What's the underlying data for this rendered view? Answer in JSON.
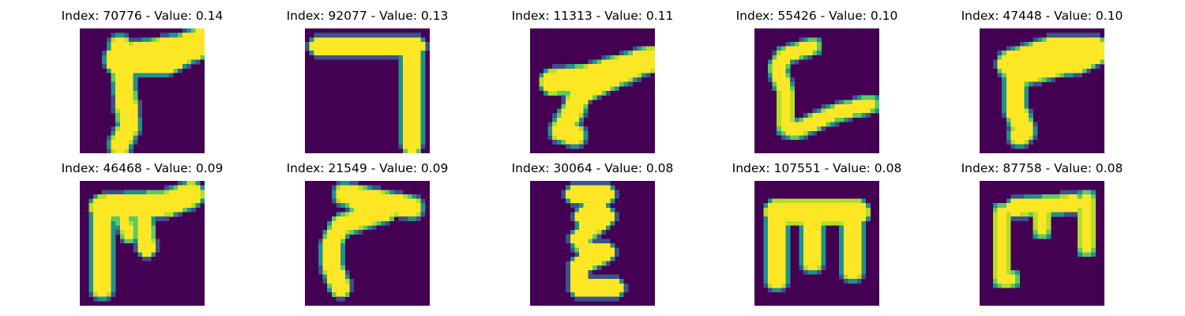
{
  "colors": {
    "background": "#440154",
    "mid": "#21918c",
    "high": "#fde725",
    "accent": "#b5de2b"
  },
  "panels": [
    {
      "title": "Index: 70776 - Value: 0.14",
      "strokes": [
        {
          "points": [
            [
              9,
              4
            ],
            [
              11,
              22
            ],
            [
              9,
              26
            ]
          ],
          "w": 2.6
        },
        {
          "points": [
            [
              9,
              7
            ],
            [
              22,
              5
            ],
            [
              28,
              3
            ]
          ],
          "w": 3.6
        },
        {
          "points": [
            [
              10,
              8
            ],
            [
              20,
              8
            ],
            [
              25,
              5
            ]
          ],
          "w": 2.4
        }
      ]
    },
    {
      "title": "Index: 92077 - Value: 0.13",
      "strokes": [
        {
          "points": [
            [
              3,
              4
            ],
            [
              25,
              4
            ]
          ],
          "w": 2.3
        },
        {
          "points": [
            [
              24,
              4
            ],
            [
              24,
              26
            ]
          ],
          "w": 2.4
        }
      ]
    },
    {
      "title": "Index: 11313 - Value: 0.11",
      "strokes": [
        {
          "points": [
            [
              27,
              7
            ],
            [
              13,
              11
            ],
            [
              5,
              12
            ]
          ],
          "w": 3.0
        },
        {
          "points": [
            [
              12,
              11
            ],
            [
              10,
              18
            ],
            [
              7,
              23
            ],
            [
              10,
              24
            ]
          ],
          "w": 2.6
        },
        {
          "points": [
            [
              12,
              14
            ],
            [
              25,
              8
            ]
          ],
          "w": 2.6
        }
      ]
    },
    {
      "title": "Index: 55426 - Value: 0.10",
      "strokes": [
        {
          "points": [
            [
              13,
              4
            ],
            [
              7,
              6
            ],
            [
              5,
              9
            ],
            [
              7,
              14
            ],
            [
              7,
              22
            ],
            [
              9,
              23
            ],
            [
              18,
              19
            ],
            [
              26,
              17
            ]
          ],
          "w": 2.0
        }
      ]
    },
    {
      "title": "Index: 47448 - Value: 0.10",
      "strokes": [
        {
          "points": [
            [
              7,
              8
            ],
            [
              16,
              5
            ],
            [
              24,
              5
            ],
            [
              26,
              5
            ],
            [
              22,
              7
            ],
            [
              16,
              8
            ],
            [
              9,
              10
            ]
          ],
          "w": 3.2
        },
        {
          "points": [
            [
              8,
              9
            ],
            [
              8,
              18
            ],
            [
              10,
              23
            ],
            [
              9,
              24
            ]
          ],
          "w": 2.6
        }
      ]
    },
    {
      "title": "Index: 46468 - Value: 0.09",
      "strokes": [
        {
          "points": [
            [
              5,
              6
            ],
            [
              5,
              24
            ]
          ],
          "w": 2.6
        },
        {
          "points": [
            [
              5,
              6
            ],
            [
              20,
              5
            ],
            [
              25,
              3
            ]
          ],
          "w": 3.0
        },
        {
          "points": [
            [
              14,
              6
            ],
            [
              15,
              15
            ]
          ],
          "w": 2.2
        },
        {
          "points": [
            [
              10,
              9
            ],
            [
              11,
              12
            ]
          ],
          "w": 1.8
        }
      ]
    },
    {
      "title": "Index: 21549 - Value: 0.09",
      "strokes": [
        {
          "points": [
            [
              9,
              3
            ],
            [
              24,
              6
            ]
          ],
          "w": 2.6
        },
        {
          "points": [
            [
              12,
              5
            ],
            [
              18,
              7
            ],
            [
              14,
              8
            ],
            [
              8,
              10
            ],
            [
              6,
              14
            ],
            [
              6,
              19
            ],
            [
              8,
              24
            ]
          ],
          "w": 2.4
        }
      ]
    },
    {
      "title": "Index: 30064 - Value: 0.08",
      "strokes": [
        {
          "points": [
            [
              10,
              3
            ],
            [
              17,
              3
            ],
            [
              12,
              8
            ],
            [
              17,
              8
            ],
            [
              11,
              13
            ],
            [
              13,
              16
            ],
            [
              17,
              16
            ],
            [
              11,
              19
            ],
            [
              11,
              24
            ],
            [
              19,
              24
            ]
          ],
          "w": 2.2
        }
      ]
    },
    {
      "title": "Index: 107551 - Value: 0.08",
      "strokes": [
        {
          "points": [
            [
              5,
              7
            ],
            [
              23,
              7
            ]
          ],
          "w": 3.0
        },
        {
          "points": [
            [
              5,
              7
            ],
            [
              5,
              22
            ]
          ],
          "w": 2.6
        },
        {
          "points": [
            [
              13,
              8
            ],
            [
              13,
              18
            ]
          ],
          "w": 2.6
        },
        {
          "points": [
            [
              22,
              7
            ],
            [
              22,
              20
            ]
          ],
          "w": 2.6
        }
      ]
    },
    {
      "title": "Index: 87758 - Value: 0.08",
      "strokes": [
        {
          "points": [
            [
              5,
              7
            ],
            [
              5,
              22
            ],
            [
              7,
              22
            ]
          ],
          "w": 2.0
        },
        {
          "points": [
            [
              8,
              6
            ],
            [
              21,
              5
            ]
          ],
          "w": 2.2
        },
        {
          "points": [
            [
              14,
              6
            ],
            [
              14,
              11
            ]
          ],
          "w": 2.0
        },
        {
          "points": [
            [
              24,
              4
            ],
            [
              24,
              15
            ]
          ],
          "w": 2.0
        }
      ]
    }
  ]
}
